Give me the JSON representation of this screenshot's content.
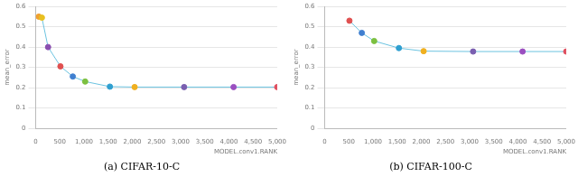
{
  "chart_data": [
    {
      "type": "line",
      "title": "(a) CIFAR-10-C",
      "x_label": "MODEL.conv1.RANK",
      "y_label": "mean_error",
      "x": [
        64,
        128,
        256,
        512,
        768,
        1024,
        1536,
        2048,
        3072,
        4096,
        5000
      ],
      "series": [
        {
          "name": "mean_error",
          "color": "#6cc3e0",
          "marker": "circle",
          "line_style": "solid",
          "colors": [
            "#f0a030",
            "#e8c020",
            "#8a4fb0",
            "#e05050",
            "#3f7fd0",
            "#7cc040",
            "#2f9fd0",
            "#f0b020",
            "#7a5fb0",
            "#9a4fc0",
            "#e05060"
          ],
          "values": [
            0.55,
            0.545,
            0.4,
            0.305,
            0.255,
            0.23,
            0.205,
            0.203,
            0.203,
            0.203,
            0.203
          ]
        }
      ],
      "xlim": [
        0,
        5000
      ],
      "xticks": [
        0,
        500,
        {
          "value": 1000,
          "label": "1,000"
        },
        {
          "value": 1500,
          "label": "1,500"
        },
        {
          "value": 2000,
          "label": "2,000"
        },
        {
          "value": 2500,
          "label": "2,500"
        },
        {
          "value": 3000,
          "label": "3,000"
        },
        {
          "value": 3500,
          "label": "3,500"
        },
        {
          "value": 4000,
          "label": "4,000"
        },
        {
          "value": 4500,
          "label": "4,500"
        },
        {
          "value": 5000,
          "label": "5,000"
        }
      ],
      "ylim": [
        0,
        0.6
      ],
      "yticks": [
        0,
        0.1,
        0.2,
        0.3,
        0.4,
        0.5,
        0.6
      ],
      "grid": true
    },
    {
      "type": "line",
      "title": "(b) CIFAR-100-C",
      "x_label": "MODEL.conv1.RANK",
      "y_label": "mean_error",
      "x": [
        512,
        768,
        1024,
        1536,
        2048,
        3072,
        4096,
        5000
      ],
      "series": [
        {
          "name": "mean_error",
          "color": "#6cc3e0",
          "marker": "circle",
          "line_style": "solid",
          "colors": [
            "#e05050",
            "#3f7fd0",
            "#7cc040",
            "#2f9fd0",
            "#f0b020",
            "#7a5fb0",
            "#9a4fc0",
            "#e05060"
          ],
          "values": [
            0.53,
            0.47,
            0.43,
            0.395,
            0.38,
            0.378,
            0.378,
            0.378
          ]
        }
      ],
      "xlim": [
        0,
        5000
      ],
      "xticks": [
        0,
        500,
        {
          "value": 1000,
          "label": "1,000"
        },
        {
          "value": 1500,
          "label": "1,500"
        },
        {
          "value": 2000,
          "label": "2,000"
        },
        {
          "value": 2500,
          "label": "2,500"
        },
        {
          "value": 3000,
          "label": "3,000"
        },
        {
          "value": 3500,
          "label": "3,500"
        },
        {
          "value": 4000,
          "label": "4,000"
        },
        {
          "value": 4500,
          "label": "4,500"
        },
        {
          "value": 5000,
          "label": "5,000"
        }
      ],
      "ylim": [
        0,
        0.6
      ],
      "yticks": [
        0,
        0.1,
        0.2,
        0.3,
        0.4,
        0.5,
        0.6
      ],
      "grid": true
    }
  ]
}
